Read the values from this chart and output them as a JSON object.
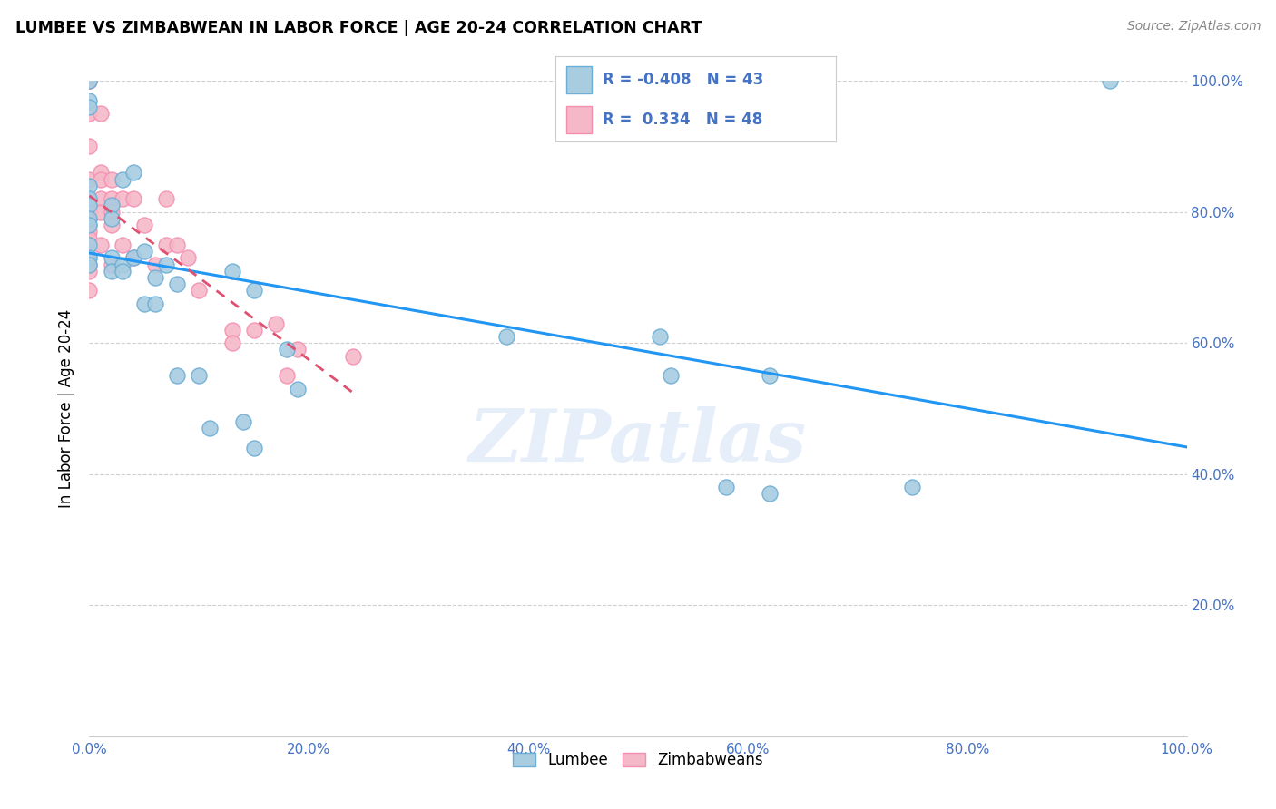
{
  "title": "LUMBEE VS ZIMBABWEAN IN LABOR FORCE | AGE 20-24 CORRELATION CHART",
  "source": "Source: ZipAtlas.com",
  "ylabel": "In Labor Force | Age 20-24",
  "xlim": [
    0.0,
    1.0
  ],
  "ylim": [
    0.0,
    1.0
  ],
  "xticks": [
    0.0,
    0.2,
    0.4,
    0.6,
    0.8,
    1.0
  ],
  "yticks": [
    0.2,
    0.4,
    0.6,
    0.8,
    1.0
  ],
  "xticklabels": [
    "0.0%",
    "20.0%",
    "40.0%",
    "60.0%",
    "80.0%",
    "100.0%"
  ],
  "yticklabels_right": [
    "20.0%",
    "40.0%",
    "60.0%",
    "80.0%",
    "100.0%"
  ],
  "lumbee_color": "#a8cce0",
  "zimbabwean_color": "#f4b8c8",
  "lumbee_edge": "#6baed6",
  "zimbabwean_edge": "#f48fb1",
  "trendline_lumbee": "#2196F3",
  "trendline_zimbabwean": "#e05070",
  "R_lumbee": -0.408,
  "N_lumbee": 43,
  "R_zimbabwean": 0.334,
  "N_zimbabwean": 48,
  "lumbee_x": [
    0.0,
    0.0,
    0.0,
    0.0,
    0.0,
    0.0,
    0.0,
    0.0,
    0.0,
    0.0,
    0.0,
    0.02,
    0.02,
    0.02,
    0.02,
    0.03,
    0.03,
    0.03,
    0.04,
    0.04,
    0.05,
    0.05,
    0.06,
    0.06,
    0.07,
    0.08,
    0.08,
    0.1,
    0.11,
    0.13,
    0.14,
    0.15,
    0.15,
    0.18,
    0.19,
    0.38,
    0.52,
    0.53,
    0.58,
    0.62,
    0.62,
    0.75,
    0.93
  ],
  "lumbee_y": [
    1.0,
    0.97,
    0.96,
    0.84,
    0.82,
    0.81,
    0.79,
    0.78,
    0.75,
    0.73,
    0.72,
    0.81,
    0.79,
    0.73,
    0.71,
    0.85,
    0.72,
    0.71,
    0.86,
    0.73,
    0.74,
    0.66,
    0.7,
    0.66,
    0.72,
    0.69,
    0.55,
    0.55,
    0.47,
    0.71,
    0.48,
    0.68,
    0.44,
    0.59,
    0.53,
    0.61,
    0.61,
    0.55,
    0.38,
    0.55,
    0.37,
    0.38,
    1.0
  ],
  "zimbabwean_x": [
    0.0,
    0.0,
    0.0,
    0.0,
    0.0,
    0.0,
    0.0,
    0.0,
    0.0,
    0.0,
    0.0,
    0.0,
    0.0,
    0.0,
    0.0,
    0.0,
    0.0,
    0.0,
    0.0,
    0.01,
    0.01,
    0.01,
    0.01,
    0.01,
    0.01,
    0.02,
    0.02,
    0.02,
    0.02,
    0.02,
    0.03,
    0.03,
    0.04,
    0.04,
    0.05,
    0.06,
    0.07,
    0.07,
    0.08,
    0.09,
    0.1,
    0.13,
    0.13,
    0.15,
    0.17,
    0.18,
    0.19,
    0.24
  ],
  "zimbabwean_y": [
    1.0,
    1.0,
    1.0,
    0.95,
    0.9,
    0.85,
    0.82,
    0.81,
    0.8,
    0.79,
    0.78,
    0.77,
    0.76,
    0.75,
    0.73,
    0.72,
    0.72,
    0.71,
    0.68,
    0.95,
    0.86,
    0.85,
    0.82,
    0.8,
    0.75,
    0.85,
    0.82,
    0.8,
    0.78,
    0.72,
    0.82,
    0.75,
    0.82,
    0.73,
    0.78,
    0.72,
    0.82,
    0.75,
    0.75,
    0.73,
    0.68,
    0.62,
    0.6,
    0.62,
    0.63,
    0.55,
    0.59,
    0.58
  ],
  "background_color": "#ffffff",
  "grid_color": "#d0d0d0",
  "watermark_color": "#c8daf5",
  "watermark_alpha": 0.45,
  "figsize": [
    14.06,
    8.92
  ],
  "dpi": 100
}
